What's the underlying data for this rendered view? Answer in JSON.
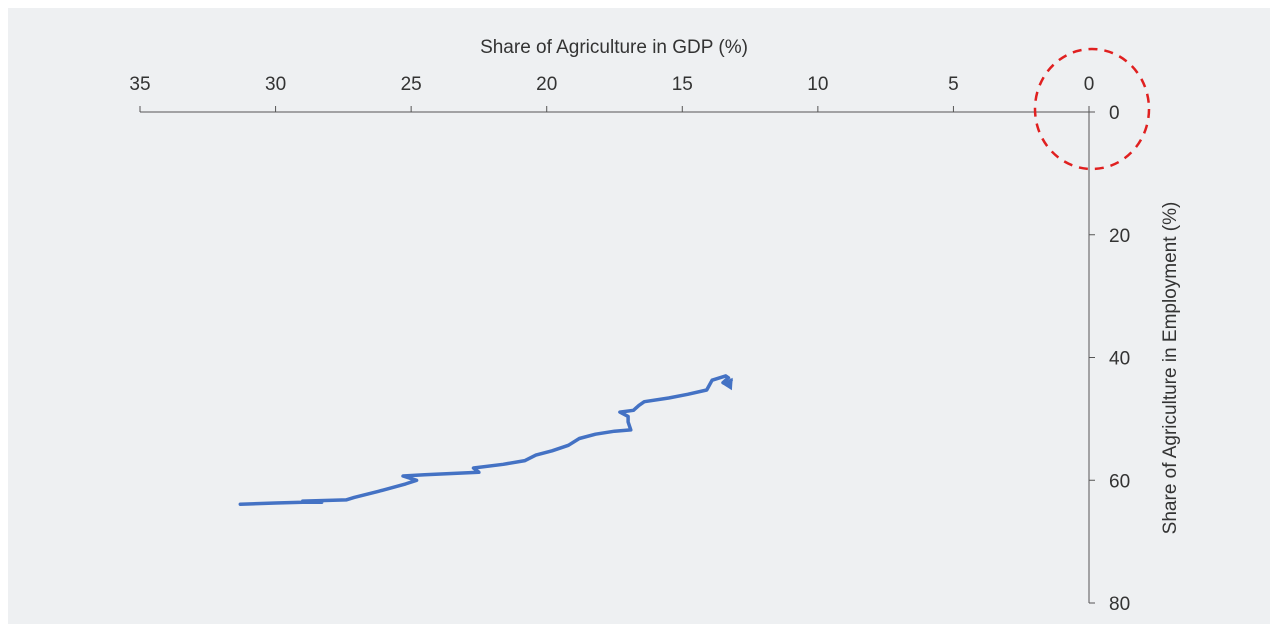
{
  "chart_data": {
    "type": "line",
    "title": "",
    "xlabel": "Share of Agriculture in GDP (%)",
    "ylabel": "Share of Agriculture in Employment (%)",
    "xlim": [
      35,
      0
    ],
    "ylim": [
      0,
      80
    ],
    "x_reversed": true,
    "x_axis_position": "top",
    "y_axis_position": "right",
    "x_ticks": [
      35,
      30,
      25,
      20,
      15,
      10,
      5,
      0
    ],
    "y_ticks": [
      0,
      20,
      40,
      60,
      80
    ],
    "grid": false,
    "legend": "none",
    "series": [
      {
        "color": "#4472c4",
        "points": [
          {
            "x": 31.3,
            "y": 63.9
          },
          {
            "x": 30.0,
            "y": 63.7
          },
          {
            "x": 29.0,
            "y": 63.6
          },
          {
            "x": 28.3,
            "y": 63.6
          },
          {
            "x": 29.0,
            "y": 63.4
          },
          {
            "x": 27.4,
            "y": 63.2
          },
          {
            "x": 27.1,
            "y": 62.8
          },
          {
            "x": 26.2,
            "y": 61.8
          },
          {
            "x": 25.2,
            "y": 60.6
          },
          {
            "x": 24.8,
            "y": 60.0
          },
          {
            "x": 25.3,
            "y": 59.3
          },
          {
            "x": 24.5,
            "y": 59.1
          },
          {
            "x": 23.5,
            "y": 58.9
          },
          {
            "x": 22.5,
            "y": 58.7
          },
          {
            "x": 22.7,
            "y": 58.0
          },
          {
            "x": 21.6,
            "y": 57.4
          },
          {
            "x": 20.8,
            "y": 56.8
          },
          {
            "x": 20.4,
            "y": 55.9
          },
          {
            "x": 19.8,
            "y": 55.2
          },
          {
            "x": 19.2,
            "y": 54.3
          },
          {
            "x": 18.8,
            "y": 53.2
          },
          {
            "x": 18.2,
            "y": 52.5
          },
          {
            "x": 17.5,
            "y": 52.0
          },
          {
            "x": 16.9,
            "y": 51.8
          },
          {
            "x": 17.0,
            "y": 50.5
          },
          {
            "x": 17.0,
            "y": 49.6
          },
          {
            "x": 17.3,
            "y": 48.9
          },
          {
            "x": 16.8,
            "y": 48.6
          },
          {
            "x": 16.6,
            "y": 47.8
          },
          {
            "x": 16.4,
            "y": 47.2
          },
          {
            "x": 15.5,
            "y": 46.6
          },
          {
            "x": 14.8,
            "y": 46.0
          },
          {
            "x": 14.1,
            "y": 45.3
          },
          {
            "x": 13.9,
            "y": 43.7
          },
          {
            "x": 13.4,
            "y": 43.0
          },
          {
            "x": 13.3,
            "y": 43.3
          },
          {
            "x": 13.5,
            "y": 44.1
          },
          {
            "x": 13.3,
            "y": 44.4
          },
          {
            "x": 13.2,
            "y": 43.7
          }
        ]
      }
    ],
    "annotations": [
      {
        "type": "dashed-circle",
        "color": "#e02020",
        "x": 0,
        "y": 0
      }
    ]
  }
}
